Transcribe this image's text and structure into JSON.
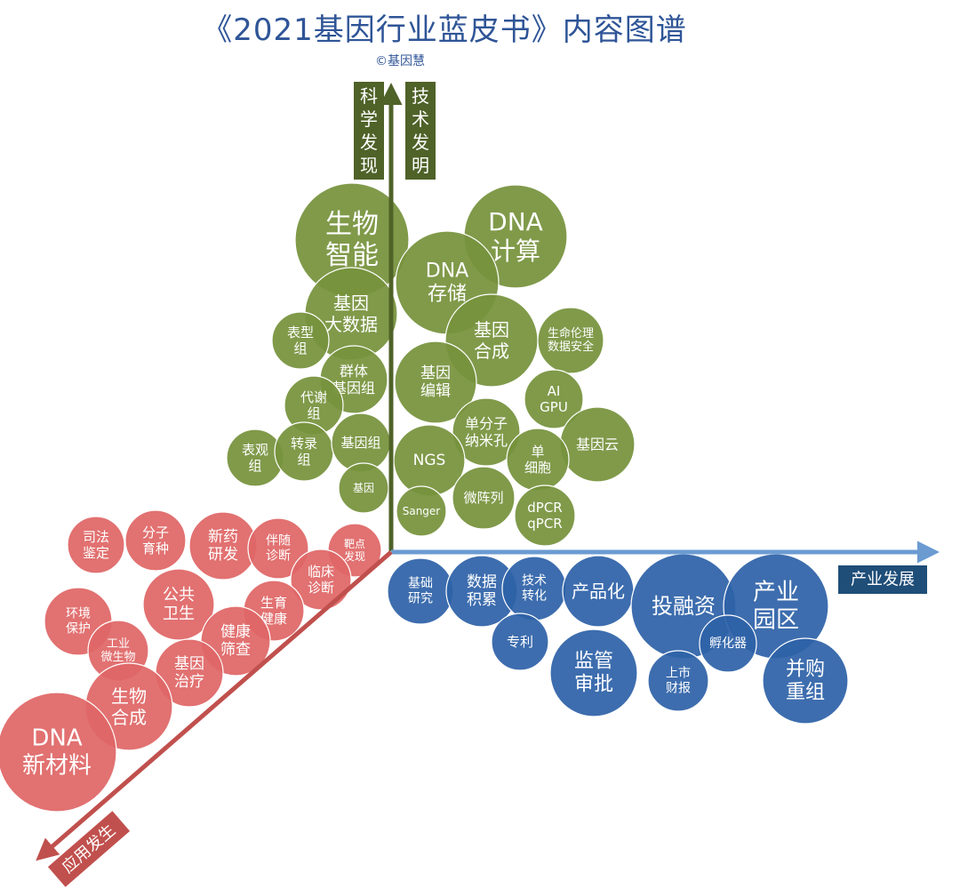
{
  "title": "《2021基因行业蓝皮书》内容图谱",
  "credit": "©基因慧",
  "colors": {
    "green": "#76923c",
    "green_dark": "#4f6228",
    "red": "#e06666",
    "red_dark": "#c0504d",
    "blue": "#2e62a8",
    "blue_axis": "#6b9bd1",
    "blue_dark": "#1f4e79"
  },
  "axes": {
    "vertical_left_label": [
      "科",
      "学",
      "发",
      "现"
    ],
    "vertical_right_label": [
      "技",
      "术",
      "发",
      "明"
    ],
    "horizontal_label": "产业发展",
    "diagonal_label": "应用发生"
  },
  "bubbles": {
    "green": [
      {
        "lines": [
          "生物",
          "智能"
        ],
        "fs": 30
      },
      {
        "lines": [
          "DNA",
          "计算"
        ],
        "fs": 28
      },
      {
        "lines": [
          "DNA",
          "存储"
        ],
        "fs": 22
      },
      {
        "lines": [
          "基因",
          "大数据"
        ],
        "fs": 20
      },
      {
        "lines": [
          "基因",
          "合成"
        ],
        "fs": 20
      },
      {
        "lines": [
          "生命伦理",
          "数据安全"
        ],
        "fs": 13
      },
      {
        "lines": [
          "表型",
          "组"
        ],
        "fs": 15
      },
      {
        "lines": [
          "群体",
          "基因组"
        ],
        "fs": 16
      },
      {
        "lines": [
          "基因",
          "编辑"
        ],
        "fs": 17
      },
      {
        "lines": [
          "AI",
          "GPU"
        ],
        "fs": 15
      },
      {
        "lines": [
          "代谢",
          "组"
        ],
        "fs": 15
      },
      {
        "lines": [
          "单分子",
          "纳米孔"
        ],
        "fs": 16
      },
      {
        "lines": [
          "基因云"
        ],
        "fs": 16
      },
      {
        "lines": [
          "表观",
          "组"
        ],
        "fs": 15
      },
      {
        "lines": [
          "转录",
          "组"
        ],
        "fs": 15
      },
      {
        "lines": [
          "基因组"
        ],
        "fs": 15
      },
      {
        "lines": [
          "NGS"
        ],
        "fs": 17
      },
      {
        "lines": [
          "单",
          "细胞"
        ],
        "fs": 15
      },
      {
        "lines": [
          "基因"
        ],
        "fs": 12
      },
      {
        "lines": [
          "Sanger"
        ],
        "fs": 12
      },
      {
        "lines": [
          "微阵列"
        ],
        "fs": 15
      },
      {
        "lines": [
          "dPCR",
          "qPCR"
        ],
        "fs": 15
      }
    ],
    "red": [
      {
        "lines": [
          "司法",
          "鉴定"
        ],
        "fs": 15
      },
      {
        "lines": [
          "分子",
          "育种"
        ],
        "fs": 15
      },
      {
        "lines": [
          "新药",
          "研发"
        ],
        "fs": 17
      },
      {
        "lines": [
          "伴随",
          "诊断"
        ],
        "fs": 14
      },
      {
        "lines": [
          "靶点",
          "发现"
        ],
        "fs": 12
      },
      {
        "lines": [
          "临床",
          "诊断"
        ],
        "fs": 15
      },
      {
        "lines": [
          "公共",
          "卫生"
        ],
        "fs": 18
      },
      {
        "lines": [
          "生育",
          "健康"
        ],
        "fs": 15
      },
      {
        "lines": [
          "环境",
          "保护"
        ],
        "fs": 14
      },
      {
        "lines": [
          "工业",
          "微生物"
        ],
        "fs": 13
      },
      {
        "lines": [
          "健康",
          "筛查"
        ],
        "fs": 17
      },
      {
        "lines": [
          "基因",
          "治疗"
        ],
        "fs": 17
      },
      {
        "lines": [
          "生物",
          "合成"
        ],
        "fs": 20
      },
      {
        "lines": [
          "DNA",
          "新材料"
        ],
        "fs": 26
      }
    ],
    "blue": [
      {
        "lines": [
          "基础",
          "研究"
        ],
        "fs": 14
      },
      {
        "lines": [
          "数据",
          "积累"
        ],
        "fs": 17
      },
      {
        "lines": [
          "技术",
          "转化"
        ],
        "fs": 14
      },
      {
        "lines": [
          "产品化"
        ],
        "fs": 20
      },
      {
        "lines": [
          "投融资"
        ],
        "fs": 24
      },
      {
        "lines": [
          "产业",
          "园区"
        ],
        "fs": 26
      },
      {
        "lines": [
          "专利"
        ],
        "fs": 15
      },
      {
        "lines": [
          "监管",
          "审批"
        ],
        "fs": 22
      },
      {
        "lines": [
          "孵化器"
        ],
        "fs": 14
      },
      {
        "lines": [
          "上市",
          "财报"
        ],
        "fs": 14
      },
      {
        "lines": [
          "并购",
          "重组"
        ],
        "fs": 22
      }
    ]
  }
}
